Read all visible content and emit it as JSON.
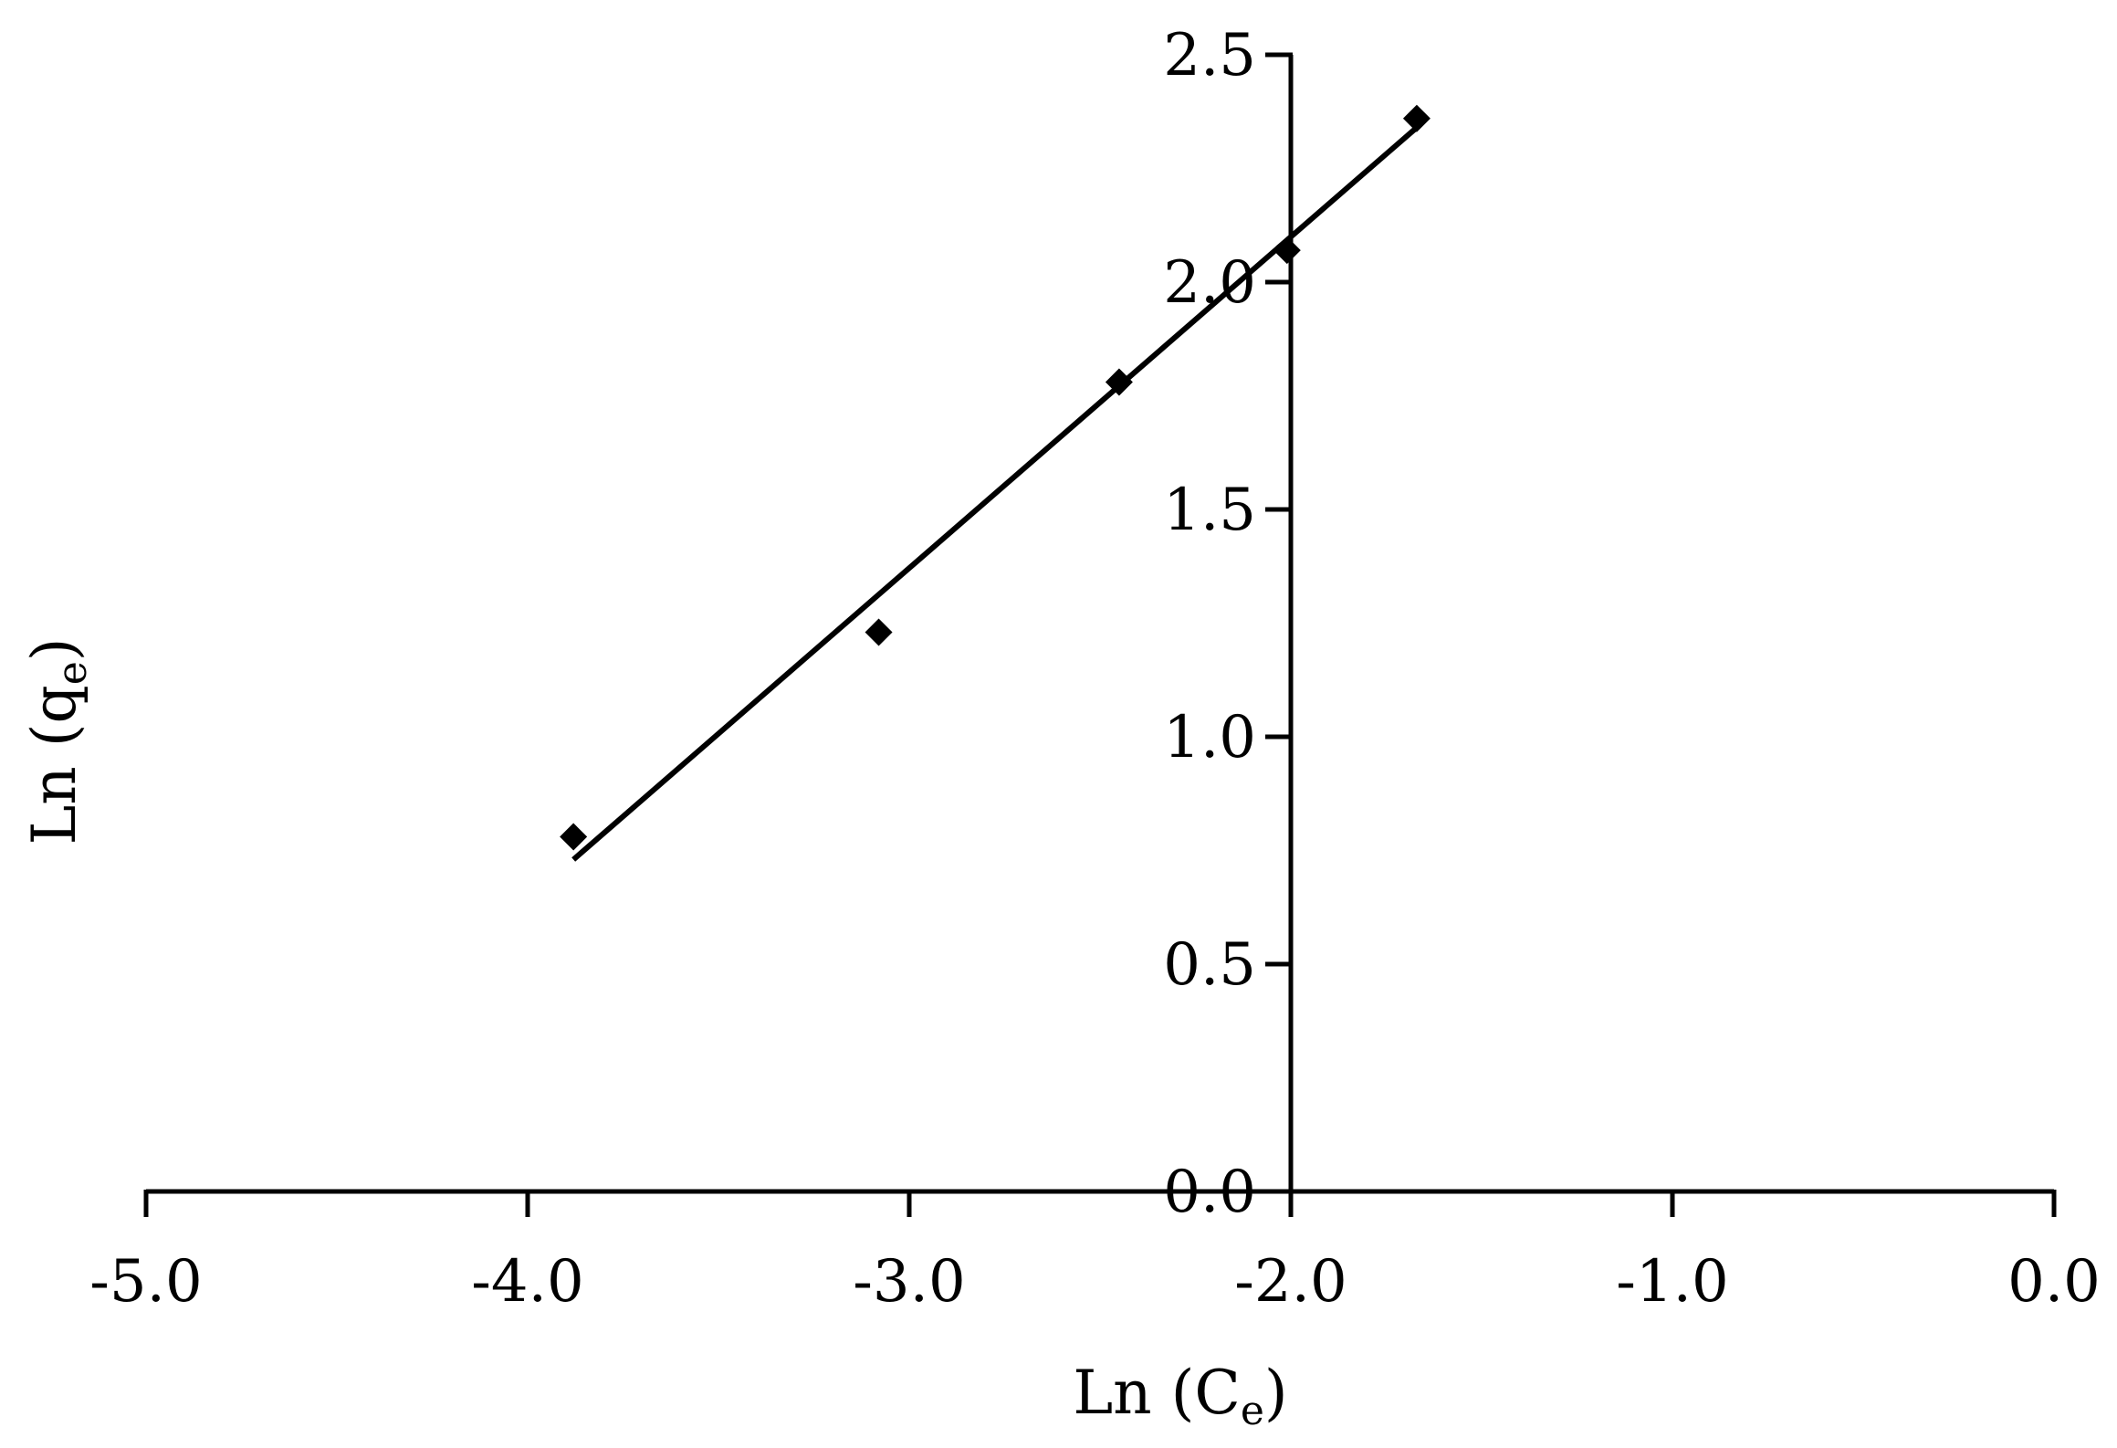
{
  "chart_data": {
    "type": "scatter",
    "title": "",
    "xlabel": {
      "main": "Ln (C",
      "sub": "e",
      "close": ")"
    },
    "ylabel": {
      "main": "Ln (q",
      "sub": "e",
      "close": ")"
    },
    "xlim": [
      -5.0,
      0.0
    ],
    "ylim": [
      0.0,
      2.5
    ],
    "x_ticks": [
      "-5.0",
      "-4.0",
      "-3.0",
      "-2.0",
      "-1.0",
      "0.0"
    ],
    "y_ticks": [
      "0.0",
      "0.5",
      "1.0",
      "1.5",
      "2.0",
      "2.5"
    ],
    "grid": false,
    "legend": "none",
    "series": [
      {
        "marker": "diamond",
        "x": [
          -3.88,
          -3.08,
          -2.45,
          -2.01,
          -1.67
        ],
        "y": [
          0.78,
          1.23,
          1.78,
          2.07,
          2.36
        ]
      }
    ],
    "trendline": {
      "type": "linear",
      "x": [
        -3.88,
        -1.67
      ],
      "y": [
        0.73,
        2.34
      ]
    }
  }
}
